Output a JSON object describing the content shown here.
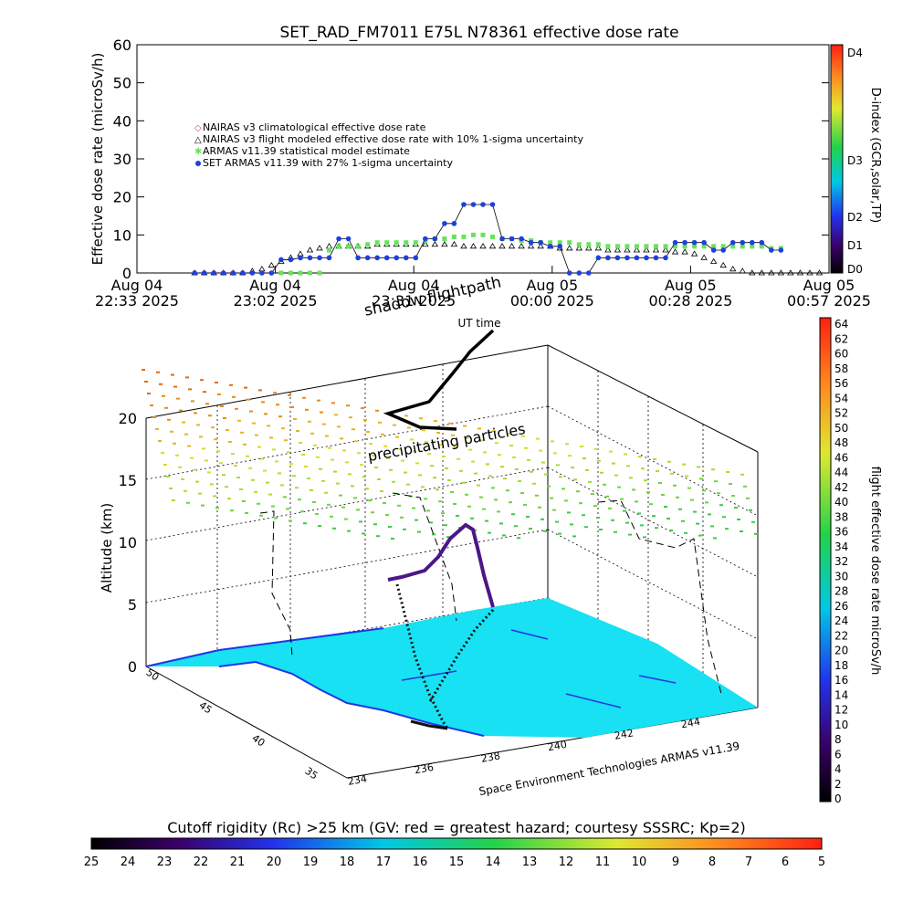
{
  "title": "SET_RAD_FM7011   E75L N78361 effective dose rate",
  "colors": {
    "cyan_ground": "#17e1f2",
    "ground_blue": "#1f36e6",
    "series_blue": "#1f3fe0",
    "series_green": "#66e35a",
    "series_red": "#d84a4a"
  },
  "chart_data": [
    {
      "type": "line",
      "title": "SET_RAD_FM7011   E75L N78361 effective dose rate",
      "ylabel": "Effective dose rate (microSv/h)",
      "ylim": [
        0,
        60
      ],
      "yticks": [
        "0",
        "10",
        "20",
        "30",
        "40",
        "50",
        "60"
      ],
      "xticks": [
        {
          "line1": "Aug 04",
          "line2": "22:33 2025"
        },
        {
          "line1": "Aug 04",
          "line2": "23:02 2025"
        },
        {
          "line1": "Aug 04",
          "line2": "23:31 2025"
        },
        {
          "line1": "Aug 05",
          "line2": "00:00 2025"
        },
        {
          "line1": "Aug 05",
          "line2": "00:28 2025"
        },
        {
          "line1": "Aug 05",
          "line2": "00:57 2025"
        }
      ],
      "xlim_minutes": [
        0,
        144
      ],
      "legend_position": "top-left",
      "legend": [
        "NAIRAS v3 climatological effective dose rate",
        "NAIRAS v3 flight modeled effective dose rate with 10% 1-sigma uncertainty",
        "ARMAS v11.39 statistical model estimate",
        "SET ARMAS v11.39 with 27% 1-sigma uncertainty"
      ],
      "series": [
        {
          "name": "SET ARMAS v11.39 with 27% 1-sigma uncertainty",
          "x": [
            12,
            14,
            16,
            18,
            20,
            22,
            24,
            26,
            28,
            30,
            32,
            34,
            36,
            38,
            40,
            42,
            44,
            46,
            48,
            50,
            52,
            54,
            56,
            58,
            60,
            62,
            64,
            66,
            68,
            70,
            72,
            74,
            76,
            78,
            80,
            82,
            84,
            86,
            88,
            90,
            92,
            94,
            96,
            98,
            100,
            102,
            104,
            106,
            108,
            110,
            112,
            114,
            116,
            118,
            120,
            122,
            124,
            126,
            128,
            130,
            132,
            134
          ],
          "y": [
            0,
            0,
            0,
            0,
            0,
            0,
            0,
            0,
            0,
            3.5,
            3.5,
            4,
            4,
            4,
            4,
            9,
            9,
            4,
            4,
            4,
            4,
            4,
            4,
            4,
            9,
            9,
            13,
            13,
            18,
            18,
            18,
            18,
            9,
            9,
            9,
            8,
            8,
            7,
            7,
            0,
            0,
            0,
            4,
            4,
            4,
            4,
            4,
            4,
            4,
            4,
            8,
            8,
            8,
            8,
            6,
            6,
            8,
            8,
            8,
            8,
            6,
            6
          ]
        },
        {
          "name": "ARMAS v11.39 statistical model estimate",
          "x": [
            30,
            32,
            34,
            36,
            38,
            40,
            42,
            44,
            46,
            48,
            50,
            52,
            54,
            56,
            58,
            60,
            62,
            64,
            66,
            68,
            70,
            72,
            74,
            76,
            78,
            80,
            82,
            84,
            86,
            88,
            90,
            92,
            94,
            96,
            98,
            100,
            102,
            104,
            106,
            108,
            110,
            112,
            114,
            116,
            118,
            120,
            122,
            124,
            126,
            128,
            130,
            132,
            134
          ],
          "y": [
            0,
            0,
            0,
            0,
            0,
            6,
            7,
            7,
            7,
            7.5,
            8,
            8,
            8,
            8,
            8,
            8.5,
            9,
            9,
            9.5,
            9.5,
            10,
            10,
            9.5,
            9,
            9,
            8.5,
            8.5,
            8,
            8,
            8,
            8,
            7.5,
            7.5,
            7.5,
            7,
            7,
            7,
            7,
            7,
            7,
            7,
            7,
            7,
            7,
            7,
            7,
            7,
            7,
            7,
            7,
            7,
            6.5,
            6.5
          ]
        },
        {
          "name": "NAIRAS v3 flight modeled effective dose rate with 10% 1-sigma uncertainty",
          "x": [
            12,
            14,
            16,
            18,
            20,
            22,
            24,
            26,
            28,
            30,
            32,
            34,
            36,
            38,
            40,
            42,
            44,
            46,
            48,
            50,
            52,
            54,
            56,
            58,
            60,
            62,
            64,
            66,
            68,
            70,
            72,
            74,
            76,
            78,
            80,
            82,
            84,
            86,
            88,
            90,
            92,
            94,
            96,
            98,
            100,
            102,
            104,
            106,
            108,
            110,
            112,
            114,
            116,
            118,
            120,
            122,
            124,
            126,
            128,
            130,
            132,
            134,
            136,
            138,
            140,
            142
          ],
          "y": [
            0,
            0,
            0,
            0,
            0,
            0,
            0.5,
            1,
            2,
            3,
            4,
            5,
            6,
            6.5,
            7,
            7,
            7,
            7,
            7,
            7.5,
            7.5,
            7.5,
            7.5,
            7.5,
            7.5,
            7.5,
            7.5,
            7.5,
            7,
            7,
            7,
            7,
            7,
            7,
            7,
            7,
            7,
            7,
            6.5,
            6.5,
            6.5,
            6.5,
            6.5,
            6,
            6,
            6,
            6,
            6,
            6,
            6,
            5.5,
            5.5,
            5,
            4,
            3,
            2,
            1,
            0.5,
            0,
            0,
            0,
            0,
            0,
            0,
            0,
            0
          ]
        }
      ]
    },
    {
      "type": "table",
      "title": "shadow flightpath",
      "zlabel": "Altitude (km)",
      "zticks": [
        "0",
        "5",
        "10",
        "15",
        "20"
      ],
      "lat_ticks": [
        "50",
        "45",
        "40",
        "35"
      ],
      "lon_ticks": [
        "234",
        "236",
        "238",
        "240",
        "242",
        "244"
      ],
      "annotations": [
        "UT time",
        "precipitating particles",
        "Space Environment Technologies ARMAS v11.39"
      ]
    }
  ],
  "colorbars": {
    "dindex": {
      "label": "D-index (GCR,solar,TP)",
      "ticks": [
        "D4",
        "D3",
        "D2",
        "D1",
        "D0"
      ]
    },
    "dose": {
      "label": "flight effective dose rate microSv/h",
      "ticks": [
        "64",
        "62",
        "60",
        "58",
        "56",
        "54",
        "52",
        "50",
        "48",
        "46",
        "44",
        "42",
        "40",
        "38",
        "36",
        "34",
        "32",
        "30",
        "28",
        "26",
        "24",
        "22",
        "20",
        "18",
        "16",
        "14",
        "12",
        "10",
        "8",
        "6",
        "4",
        "2",
        "0"
      ]
    },
    "cutoff": {
      "label": "Cutoff rigidity (Rc) >25 km (GV: red = greatest hazard; courtesy SSSRC; Kp=2)",
      "ticks": [
        "25",
        "24",
        "23",
        "22",
        "21",
        "20",
        "19",
        "18",
        "17",
        "16",
        "15",
        "14",
        "13",
        "12",
        "11",
        "10",
        "9",
        "8",
        "7",
        "6",
        "5"
      ]
    }
  }
}
